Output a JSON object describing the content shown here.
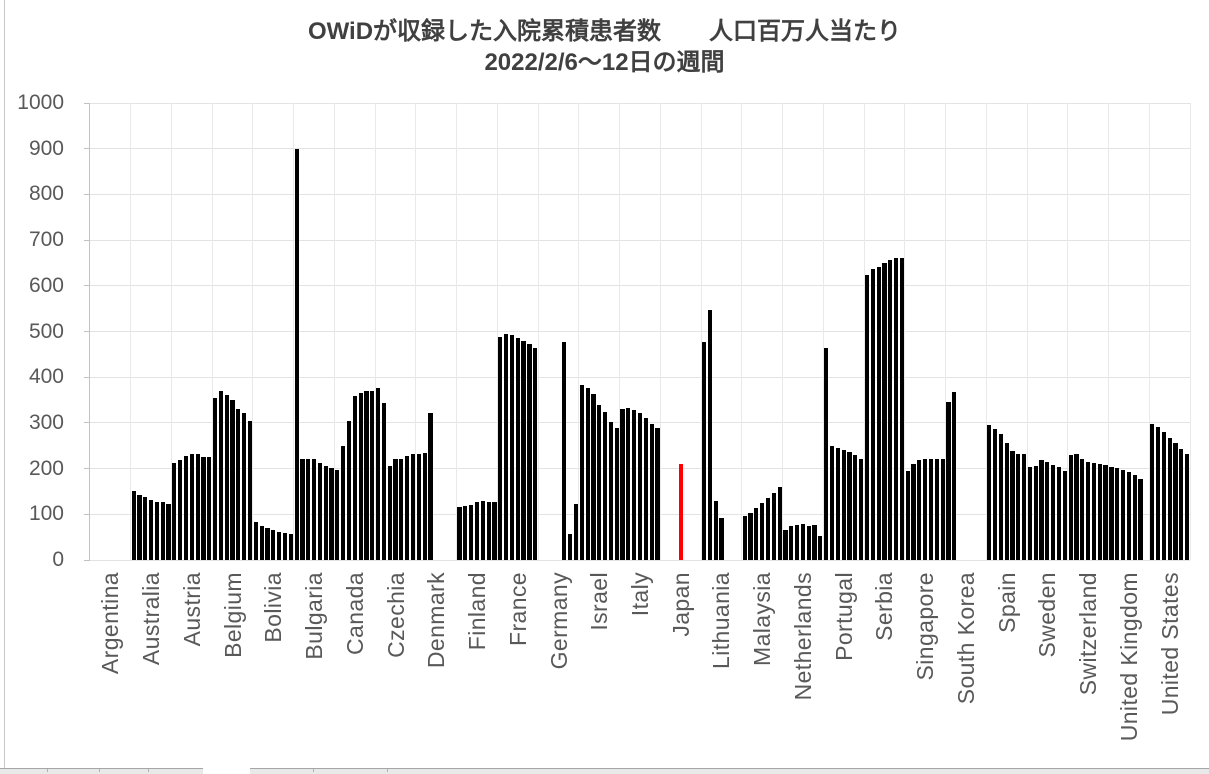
{
  "colors": {
    "bar": "#000000",
    "highlight": "#ff0000",
    "gridline": "#e3e3e3",
    "axis": "#c2c2c2",
    "text": "#595959",
    "title_text": "#404040",
    "worksheet_strip": "#e9e9e9"
  },
  "y_axis": {
    "tick_labels": [
      "0",
      "100",
      "200",
      "300",
      "400",
      "500",
      "600",
      "700",
      "800",
      "900",
      "1000"
    ]
  },
  "chart_data": {
    "type": "bar",
    "title": "OWiDが収録した入院累積患者数　　人口百万人当たり",
    "subtitle": "2022/2/6～12日の週間",
    "xlabel": "",
    "ylabel": "",
    "ylim": [
      0,
      1000
    ],
    "y_step": 100,
    "grid": true,
    "legend_position": "none",
    "bar_color": "#000000",
    "highlight": {
      "category": "Japan",
      "color": "#ff0000"
    },
    "categories": [
      "Argentina",
      "Australia",
      "Austria",
      "Belgium",
      "Bolivia",
      "Bulgaria",
      "Canada",
      "Czechia",
      "Denmark",
      "Finland",
      "France",
      "Germany",
      "Israel",
      "Italy",
      "Japan",
      "Lithuania",
      "Malaysia",
      "Netherlands",
      "Portugal",
      "Serbia",
      "Singapore",
      "South Korea",
      "Spain",
      "Sweden",
      "Switzerland",
      "United Kingdom",
      "United States"
    ],
    "series": [
      {
        "country": "Argentina",
        "values": []
      },
      {
        "country": "Australia",
        "values": [
          151,
          142,
          137,
          132,
          128,
          126,
          123
        ]
      },
      {
        "country": "Austria",
        "values": [
          212,
          219,
          228,
          232,
          231,
          226,
          226
        ]
      },
      {
        "country": "Belgium",
        "values": [
          354,
          370,
          360,
          350,
          330,
          322,
          305
        ]
      },
      {
        "country": "Bolivia",
        "values": [
          84,
          75,
          71,
          66,
          62,
          60,
          57
        ]
      },
      {
        "country": "Bulgaria",
        "values": [
          900,
          222,
          222,
          220,
          213,
          206,
          201
        ]
      },
      {
        "country": "Canada",
        "values": [
          197,
          249,
          305,
          359,
          366,
          370,
          370
        ]
      },
      {
        "country": "Czechia",
        "values": [
          376,
          344,
          206,
          220,
          221,
          228,
          233
        ]
      },
      {
        "country": "Denmark",
        "values": [
          233,
          234,
          322
        ]
      },
      {
        "country": "Finland",
        "values": [
          117,
          119,
          121,
          128,
          130,
          126,
          128
        ]
      },
      {
        "country": "France",
        "values": [
          489,
          494,
          492,
          485,
          479,
          472,
          465
        ]
      },
      {
        "country": "Germany",
        "values": [
          476,
          56,
          122
        ],
        "offset": 4
      },
      {
        "country": "Israel",
        "values": [
          383,
          377,
          364,
          339,
          323,
          303,
          289
        ]
      },
      {
        "country": "Italy",
        "values": [
          330,
          333,
          328,
          321,
          310,
          297,
          289
        ]
      },
      {
        "country": "Japan",
        "values": [
          211
        ],
        "offset": 3,
        "color": "#ff0000"
      },
      {
        "country": "Lithuania",
        "values": [
          478,
          548,
          130,
          91
        ]
      },
      {
        "country": "Malaysia",
        "values": [
          96,
          102,
          113,
          124,
          135,
          146,
          160
        ]
      },
      {
        "country": "Netherlands",
        "values": [
          66,
          74,
          77,
          78,
          74,
          77,
          52
        ]
      },
      {
        "country": "Portugal",
        "values": [
          465,
          250,
          246,
          240,
          237,
          230,
          222
        ]
      },
      {
        "country": "Serbia",
        "values": [
          623,
          636,
          642,
          650,
          657,
          660,
          660
        ]
      },
      {
        "country": "Singapore",
        "values": [
          195,
          210,
          219,
          220,
          220,
          220,
          221
        ]
      },
      {
        "country": "South Korea",
        "values": [
          346,
          368
        ]
      },
      {
        "country": "Spain",
        "values": [
          296,
          286,
          275,
          255,
          239,
          233,
          232
        ]
      },
      {
        "country": "Sweden",
        "values": [
          204,
          206,
          219,
          215,
          207,
          204,
          195
        ]
      },
      {
        "country": "Switzerland",
        "values": [
          230,
          231,
          222,
          215,
          213,
          210,
          208
        ]
      },
      {
        "country": "United Kingdom",
        "values": [
          204,
          201,
          197,
          193,
          186,
          177
        ]
      },
      {
        "country": "United States",
        "values": [
          297,
          292,
          281,
          268,
          257,
          242,
          232
        ]
      }
    ]
  }
}
